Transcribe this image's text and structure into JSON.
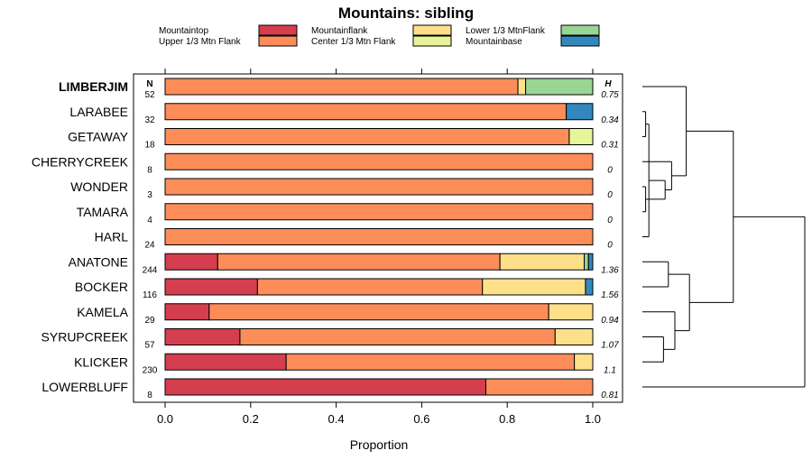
{
  "chart_data": {
    "type": "stacked-bar",
    "orientation": "horizontal",
    "title": "Mountains: sibling",
    "xlabel": "Proportion",
    "xlim": [
      0,
      1
    ],
    "xticks": [
      "0.0",
      "0.2",
      "0.4",
      "0.6",
      "0.8",
      "1.0"
    ],
    "n_header": "N",
    "h_header": "H",
    "series": [
      {
        "name": "Mountaintop",
        "color": "#d53e4f"
      },
      {
        "name": "Upper 1/3 Mtn Flank",
        "color": "#fc8d59"
      },
      {
        "name": "Mountainflank",
        "color": "#fee08b"
      },
      {
        "name": "Center 1/3 Mtn Flank",
        "color": "#e6f598"
      },
      {
        "name": "Lower 1/3 MtnFlank",
        "color": "#99d594"
      },
      {
        "name": "Mountainbase",
        "color": "#3288bd"
      }
    ],
    "rows": [
      {
        "label": "LIMBERJIM",
        "bold": true,
        "n": "52",
        "h": "0.75",
        "values": [
          0,
          0.825,
          0.018,
          0,
          0.157,
          0
        ]
      },
      {
        "label": "LARABEE",
        "bold": false,
        "n": "32",
        "h": "0.34",
        "values": [
          0,
          0.938,
          0,
          0,
          0,
          0.062
        ]
      },
      {
        "label": "GETAWAY",
        "bold": false,
        "n": "18",
        "h": "0.31",
        "values": [
          0,
          0.945,
          0,
          0.055,
          0,
          0
        ]
      },
      {
        "label": "CHERRYCREEK",
        "bold": false,
        "n": "8",
        "h": "0",
        "values": [
          0,
          1,
          0,
          0,
          0,
          0
        ]
      },
      {
        "label": "WONDER",
        "bold": false,
        "n": "3",
        "h": "0",
        "values": [
          0,
          1,
          0,
          0,
          0,
          0
        ]
      },
      {
        "label": "TAMARA",
        "bold": false,
        "n": "4",
        "h": "0",
        "values": [
          0,
          1,
          0,
          0,
          0,
          0
        ]
      },
      {
        "label": "HARL",
        "bold": false,
        "n": "24",
        "h": "0",
        "values": [
          0,
          1,
          0,
          0,
          0,
          0
        ]
      },
      {
        "label": "ANATONE",
        "bold": false,
        "n": "244",
        "h": "1.36",
        "values": [
          0.123,
          0.66,
          0.197,
          0,
          0.01,
          0.01
        ]
      },
      {
        "label": "BOCKER",
        "bold": false,
        "n": "116",
        "h": "1.56",
        "values": [
          0.216,
          0.526,
          0.241,
          0,
          0,
          0.017
        ]
      },
      {
        "label": "KAMELA",
        "bold": false,
        "n": "29",
        "h": "0.94",
        "values": [
          0.103,
          0.794,
          0.103,
          0,
          0,
          0
        ]
      },
      {
        "label": "SYRUPCREEK",
        "bold": false,
        "n": "57",
        "h": "1.07",
        "values": [
          0.175,
          0.737,
          0.088,
          0,
          0,
          0
        ]
      },
      {
        "label": "KLICKER",
        "bold": false,
        "n": "230",
        "h": "1.1",
        "values": [
          0.283,
          0.674,
          0.043,
          0,
          0,
          0
        ]
      },
      {
        "label": "LOWERBLUFF",
        "bold": false,
        "n": "8",
        "h": "0.81",
        "values": [
          0.75,
          0.25,
          0,
          0,
          0,
          0
        ]
      }
    ],
    "dendrogram": {
      "merges": [
        {
          "a": 1,
          "b": 2,
          "h": 0.02
        },
        {
          "a": 4,
          "b": 5,
          "h": 0.02
        },
        {
          "a": 6,
          "b": 100,
          "h": 0.04
        },
        {
          "a": 101,
          "b": 102,
          "h": 0.14
        },
        {
          "a": 3,
          "b": 103,
          "h": 0.18
        },
        {
          "a": 0,
          "b": 104,
          "h": 0.27
        },
        {
          "a": 7,
          "b": 8,
          "h": 0.16
        },
        {
          "a": 10,
          "b": 11,
          "h": 0.13
        },
        {
          "a": 9,
          "b": 107,
          "h": 0.2
        },
        {
          "a": 106,
          "b": 108,
          "h": 0.29
        },
        {
          "a": 105,
          "b": 109,
          "h": 0.56
        },
        {
          "a": 12,
          "b": 110,
          "h": 1.0
        }
      ]
    }
  }
}
